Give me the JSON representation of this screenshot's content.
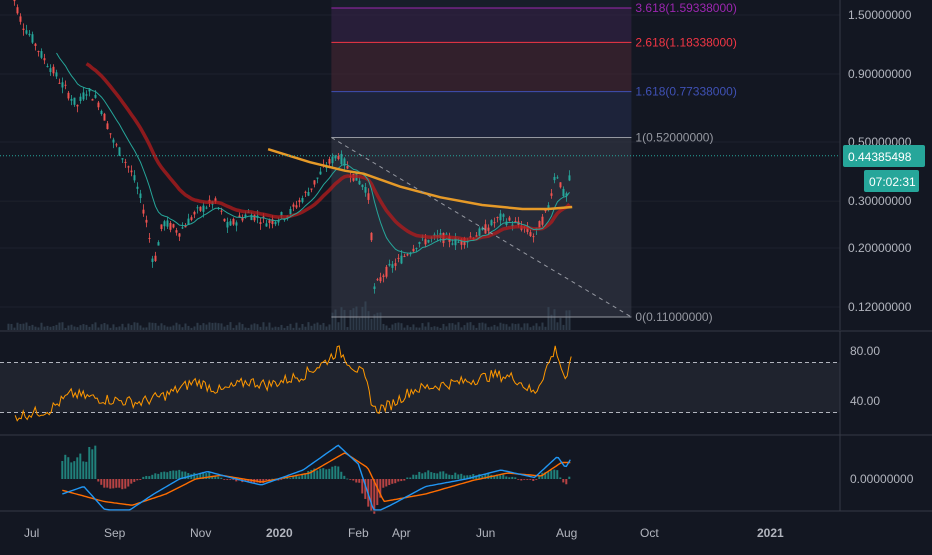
{
  "colors": {
    "background": "#131722",
    "grid": "#1e222d",
    "separator": "#363a45",
    "axis_text": "#b2b5be",
    "candle_up": "#26a69a",
    "candle_down": "#ef5350",
    "ema_fast": "#26a69a",
    "ema_slow": "#b71c1c",
    "ma_long": "#e69a28",
    "price_line": "#26a69a",
    "price_badge": "#26a69a",
    "rsi": "#ff9800",
    "macd": "#2196f3",
    "macd_signal": "#ff6d00",
    "fib_3618": "#9c27b0",
    "fib_2618": "#f23645",
    "fib_1618": "#3f51b5",
    "fib_1": "#9598a1",
    "fib_0": "#9598a1"
  },
  "price_axis": {
    "ticks": [
      "1.50000000",
      "0.90000000",
      "0.50000000",
      "0.30000000",
      "0.20000000",
      "0.12000000"
    ]
  },
  "price_badge": {
    "value": "0.44385498",
    "countdown": "07:02:31"
  },
  "fib_levels": [
    {
      "label": "3.618(1.59338000)",
      "value": 1.59338,
      "color": "#9c27b0"
    },
    {
      "label": "2.618(1.18338000)",
      "value": 1.18338,
      "color": "#f23645"
    },
    {
      "label": "1.618(0.77338000)",
      "value": 0.77338,
      "color": "#3f51b5"
    },
    {
      "label": "1(0.52000000)",
      "value": 0.52,
      "color": "#9598a1"
    },
    {
      "label": "0(0.11000000)",
      "value": 0.11,
      "color": "#9598a1"
    }
  ],
  "rsi_axis": {
    "ticks": [
      "80.00",
      "40.00"
    ],
    "bands": [
      70,
      30
    ]
  },
  "macd_axis": {
    "ticks": [
      "0.00000000"
    ]
  },
  "time_axis": {
    "labels": [
      "Jul",
      "Sep",
      "Nov",
      "2020",
      "Feb",
      "Apr",
      "Jun",
      "Aug",
      "Oct",
      "2021"
    ]
  },
  "chart_data": {
    "type": "candlestick",
    "scale": "log",
    "price_range": [
      0.095,
      1.9
    ],
    "date_range": [
      "2019-06-15",
      "2021-02-15"
    ],
    "price_path": [
      [
        "2019-06-15",
        1.95
      ],
      [
        "2019-06-25",
        1.4
      ],
      [
        "2019-07-10",
        1.05
      ],
      [
        "2019-07-25",
        0.82
      ],
      [
        "2019-08-05",
        0.68
      ],
      [
        "2019-08-12",
        0.78
      ],
      [
        "2019-08-20",
        0.72
      ],
      [
        "2019-09-01",
        0.5
      ],
      [
        "2019-09-15",
        0.38
      ],
      [
        "2019-09-25",
        0.26
      ],
      [
        "2019-10-01",
        0.17
      ],
      [
        "2019-10-08",
        0.25
      ],
      [
        "2019-10-20",
        0.23
      ],
      [
        "2019-11-01",
        0.27
      ],
      [
        "2019-11-15",
        0.3
      ],
      [
        "2019-11-25",
        0.24
      ],
      [
        "2019-12-10",
        0.27
      ],
      [
        "2019-12-25",
        0.25
      ],
      [
        "2020-01-10",
        0.27
      ],
      [
        "2020-01-25",
        0.33
      ],
      [
        "2020-02-05",
        0.4
      ],
      [
        "2020-02-15",
        0.45
      ],
      [
        "2020-02-25",
        0.38
      ],
      [
        "2020-03-08",
        0.33
      ],
      [
        "2020-03-13",
        0.14
      ],
      [
        "2020-03-20",
        0.16
      ],
      [
        "2020-04-01",
        0.18
      ],
      [
        "2020-04-15",
        0.21
      ],
      [
        "2020-05-01",
        0.22
      ],
      [
        "2020-05-15",
        0.21
      ],
      [
        "2020-06-01",
        0.23
      ],
      [
        "2020-06-15",
        0.26
      ],
      [
        "2020-07-01",
        0.24
      ],
      [
        "2020-07-10",
        0.22
      ],
      [
        "2020-07-20",
        0.28
      ],
      [
        "2020-07-26",
        0.39
      ],
      [
        "2020-07-30",
        0.34
      ],
      [
        "2020-08-02",
        0.3
      ],
      [
        "2020-08-05",
        0.36
      ],
      [
        "2020-08-07",
        0.44
      ]
    ],
    "ma_long": [
      [
        "2019-12-25",
        0.47
      ],
      [
        "2020-01-25",
        0.42
      ],
      [
        "2020-02-20",
        0.39
      ],
      [
        "2020-03-05",
        0.38
      ],
      [
        "2020-04-01",
        0.34
      ],
      [
        "2020-05-01",
        0.31
      ],
      [
        "2020-06-01",
        0.29
      ],
      [
        "2020-07-01",
        0.28
      ],
      [
        "2020-07-20",
        0.28
      ],
      [
        "2020-08-07",
        0.285
      ]
    ],
    "trendline": [
      [
        "2020-02-10",
        0.52
      ],
      [
        "2020-09-20",
        0.11
      ]
    ],
    "fib_box": {
      "start": "2020-02-10",
      "end": "2020-09-20"
    },
    "rsi_range": [
      20,
      90
    ],
    "rsi_path": [
      [
        "2019-06-20",
        27
      ],
      [
        "2019-07-15",
        32
      ],
      [
        "2019-08-01",
        45
      ],
      [
        "2019-08-15",
        42
      ],
      [
        "2019-09-01",
        40
      ],
      [
        "2019-09-20",
        38
      ],
      [
        "2019-10-10",
        44
      ],
      [
        "2019-11-01",
        55
      ],
      [
        "2019-11-20",
        47
      ],
      [
        "2019-12-10",
        55
      ],
      [
        "2019-12-25",
        52
      ],
      [
        "2020-01-20",
        60
      ],
      [
        "2020-02-05",
        70
      ],
      [
        "2020-02-15",
        80
      ],
      [
        "2020-02-25",
        68
      ],
      [
        "2020-03-05",
        60
      ],
      [
        "2020-03-13",
        32
      ],
      [
        "2020-03-25",
        36
      ],
      [
        "2020-04-10",
        48
      ],
      [
        "2020-05-01",
        52
      ],
      [
        "2020-05-20",
        55
      ],
      [
        "2020-06-10",
        60
      ],
      [
        "2020-06-25",
        58
      ],
      [
        "2020-07-10",
        45
      ],
      [
        "2020-07-26",
        82
      ],
      [
        "2020-07-30",
        65
      ],
      [
        "2020-08-03",
        55
      ],
      [
        "2020-08-07",
        76
      ]
    ],
    "macd_range": [
      -0.06,
      0.08
    ],
    "macd_line": [
      [
        "2019-07-25",
        -0.02
      ],
      [
        "2019-08-10",
        -0.01
      ],
      [
        "2019-08-25",
        -0.04
      ],
      [
        "2019-09-10",
        -0.045
      ],
      [
        "2019-10-01",
        -0.02
      ],
      [
        "2019-10-20",
        0.0
      ],
      [
        "2019-11-10",
        0.01
      ],
      [
        "2019-12-01",
        0.0
      ],
      [
        "2019-12-20",
        -0.008
      ],
      [
        "2020-01-20",
        0.012
      ],
      [
        "2020-02-15",
        0.045
      ],
      [
        "2020-03-01",
        0.02
      ],
      [
        "2020-03-13",
        -0.045
      ],
      [
        "2020-03-25",
        -0.035
      ],
      [
        "2020-04-20",
        -0.01
      ],
      [
        "2020-05-20",
        0.0
      ],
      [
        "2020-06-15",
        0.012
      ],
      [
        "2020-07-10",
        0.002
      ],
      [
        "2020-07-27",
        0.03
      ],
      [
        "2020-08-02",
        0.015
      ],
      [
        "2020-08-07",
        0.03
      ]
    ],
    "macd_signal": [
      [
        "2019-07-25",
        -0.015
      ],
      [
        "2019-08-25",
        -0.03
      ],
      [
        "2019-09-15",
        -0.035
      ],
      [
        "2019-10-10",
        -0.02
      ],
      [
        "2019-11-01",
        0.0
      ],
      [
        "2019-11-20",
        0.005
      ],
      [
        "2019-12-20",
        -0.004
      ],
      [
        "2020-01-25",
        0.008
      ],
      [
        "2020-02-20",
        0.035
      ],
      [
        "2020-03-08",
        0.015
      ],
      [
        "2020-03-20",
        -0.03
      ],
      [
        "2020-04-20",
        -0.02
      ],
      [
        "2020-05-25",
        -0.002
      ],
      [
        "2020-06-20",
        0.008
      ],
      [
        "2020-07-15",
        0.004
      ],
      [
        "2020-07-30",
        0.022
      ],
      [
        "2020-08-07",
        0.022
      ]
    ]
  }
}
